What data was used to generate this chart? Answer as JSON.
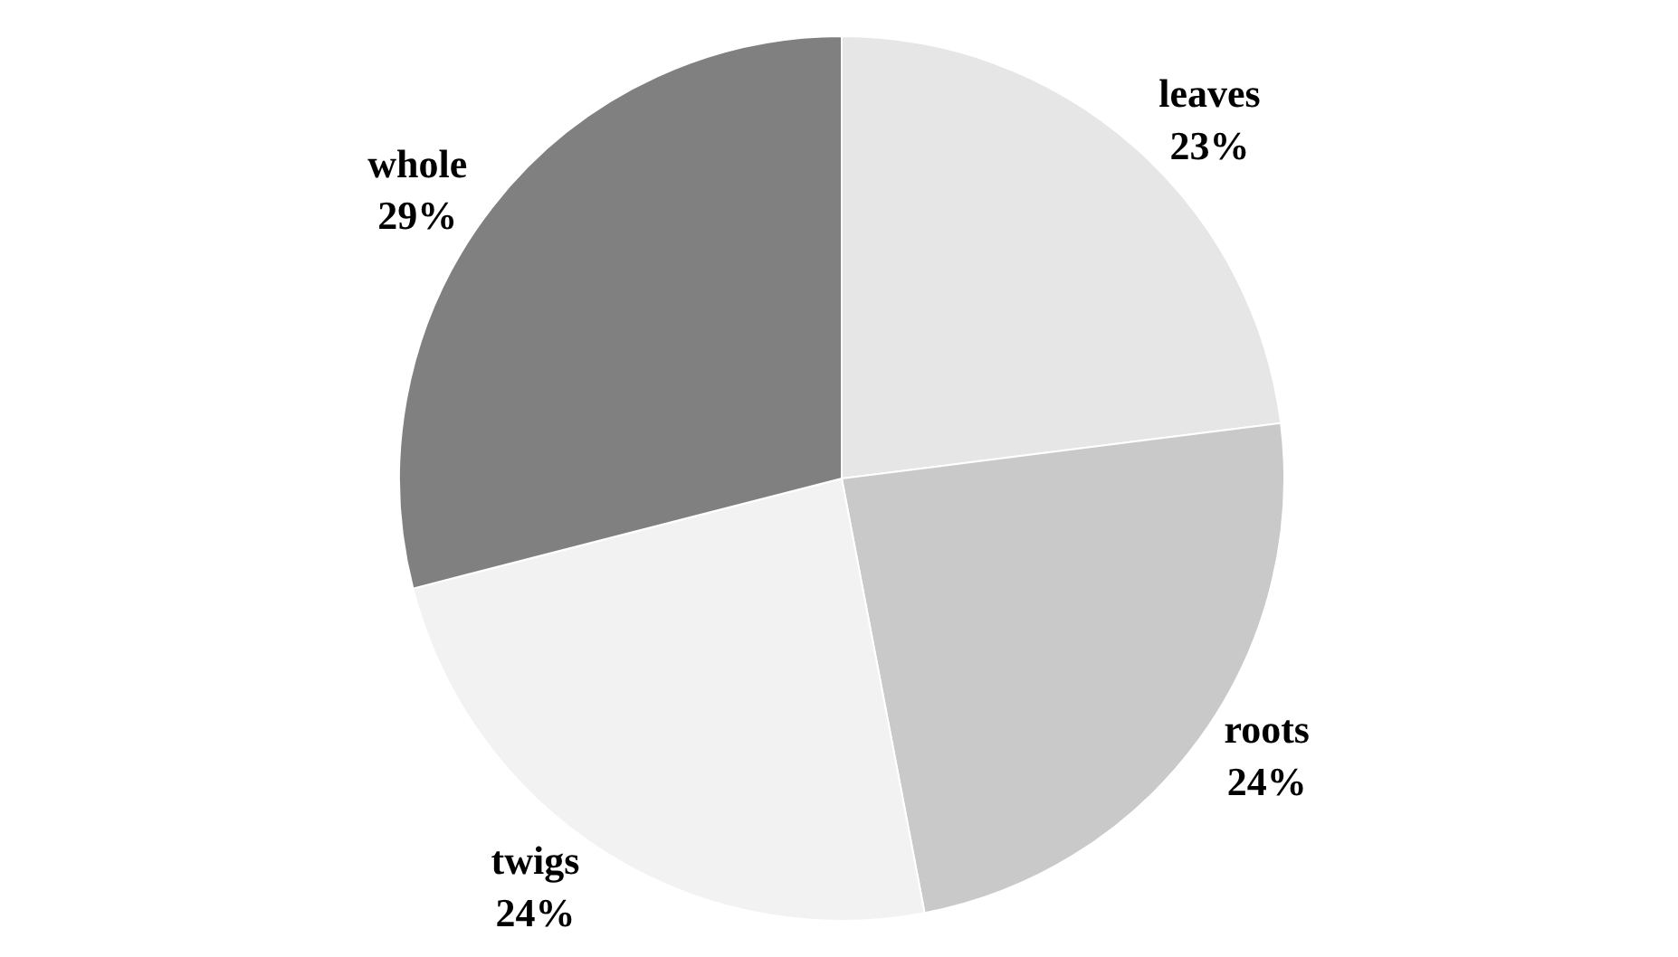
{
  "chart_data": {
    "type": "pie",
    "categories": [
      "leaves",
      "roots",
      "twigs",
      "whole"
    ],
    "values": [
      23,
      24,
      24,
      29
    ],
    "value_labels": [
      "23%",
      "24%",
      "24%",
      "29%"
    ],
    "colors": [
      "#e6e6e6",
      "#c9c9c9",
      "#f2f2f2",
      "#808080"
    ],
    "legend": false
  }
}
